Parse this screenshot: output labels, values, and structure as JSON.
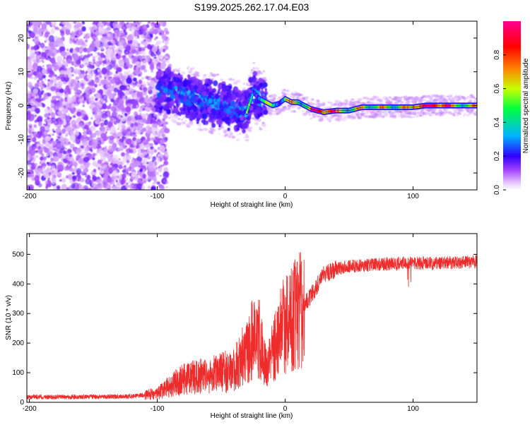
{
  "title": "S199.2025.262.17.04.E03",
  "chart_data": [
    {
      "type": "heatmap",
      "title": "S199.2025.262.17.04.E03",
      "xlabel": "Height of straight line (km)",
      "ylabel": "Frequency (Hz)",
      "xlim": [
        -202,
        150
      ],
      "ylim": [
        -25,
        25
      ],
      "xticks": [
        -200,
        -100,
        0,
        100
      ],
      "yticks": [
        -20,
        -10,
        0,
        10,
        20
      ],
      "colorbar": {
        "label": "Normalized spectral amplitude",
        "range": [
          0,
          1
        ],
        "ticks": [
          0.0,
          0.2,
          0.4,
          0.6,
          0.8
        ],
        "colors": [
          "#ffffff",
          "#e8c8ff",
          "#a040ff",
          "#3000ff",
          "#00b4ff",
          "#00ff40",
          "#c8ff00",
          "#ff8000",
          "#ff0000",
          "#ff0090"
        ]
      },
      "ridge": {
        "x": [
          -100,
          -80,
          -60,
          -40,
          -30,
          -25,
          -20,
          -15,
          -10,
          -5,
          0,
          5,
          10,
          15,
          20,
          25,
          30,
          40,
          50,
          60,
          70,
          80,
          90,
          100,
          110,
          120,
          130,
          140,
          150
        ],
        "y": [
          5,
          3,
          1,
          -1,
          -2,
          4,
          2,
          1,
          0,
          0.5,
          2,
          1,
          1,
          0,
          -1,
          -1.5,
          -2,
          -1.5,
          -1.5,
          -0.5,
          -0.5,
          -0.5,
          -0.5,
          -0.5,
          0,
          0,
          0,
          0,
          0
        ]
      }
    },
    {
      "type": "line",
      "xlabel": "Height of straight line (km)",
      "ylabel": "SNR (10 * v/v)",
      "xlim": [
        -202,
        150
      ],
      "ylim": [
        0,
        570
      ],
      "xticks": [
        -200,
        -100,
        0,
        100
      ],
      "yticks": [
        0,
        100,
        200,
        300,
        400,
        500
      ],
      "series": [
        {
          "name": "SNR",
          "color": "#ee2c2c",
          "x": [
            -200,
            -160,
            -120,
            -100,
            -80,
            -60,
            -40,
            -30,
            -25,
            -20,
            -15,
            -10,
            -5,
            0,
            10,
            20,
            30,
            40,
            50,
            70,
            90,
            100,
            120,
            150
          ],
          "y": [
            18,
            18,
            20,
            30,
            80,
            90,
            110,
            170,
            220,
            220,
            110,
            170,
            230,
            270,
            300,
            360,
            430,
            450,
            460,
            465,
            470,
            470,
            470,
            475
          ]
        }
      ]
    }
  ]
}
